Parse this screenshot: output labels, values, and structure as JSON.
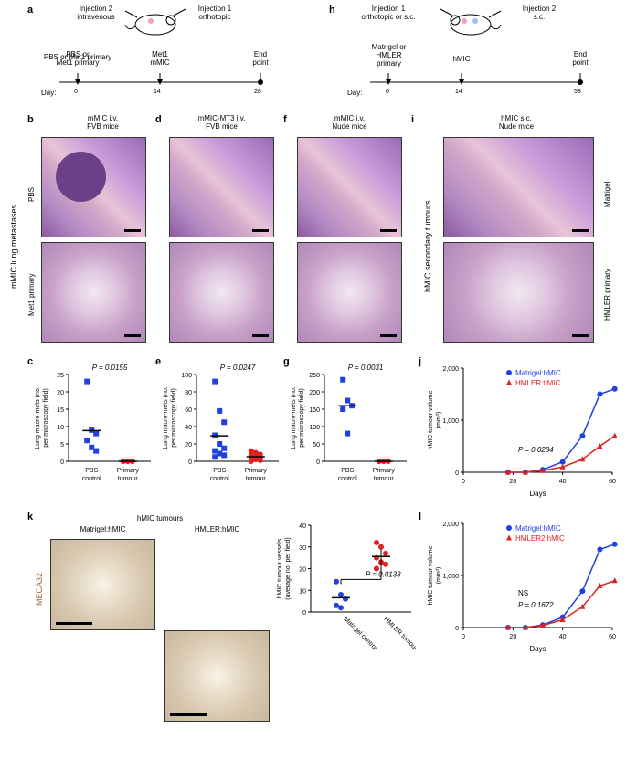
{
  "panels": {
    "a": {
      "label": "a",
      "inj1": "Injection 1\northotopic",
      "inj2": "Injection 2\nintravenous",
      "tl": {
        "l1": "PBS or\nMet1 primary",
        "l2": "Met1\nmMIC",
        "l3": "End\npoint",
        "day": "Day:",
        "d": [
          "0",
          "14",
          "28"
        ]
      }
    },
    "h": {
      "label": "h",
      "inj1": "Injection 1\northotopic or s.c.",
      "inj2": "Injection 2\ns.c.",
      "tl": {
        "l1": "Matrigel or\nHMLER\nprimary",
        "l2": "hMIC",
        "l3": "End\npoint",
        "day": "Day:",
        "d": [
          "0",
          "14",
          "58"
        ]
      }
    },
    "b": {
      "label": "b",
      "title": "mMIC i.v.\nFVB mice",
      "row1": "PBS",
      "row2": "Met1 primary"
    },
    "d": {
      "label": "d",
      "title": "mMIC-MT3 i.v.\nFVB mice"
    },
    "f": {
      "label": "f",
      "title": "mMIC i.v.\nNude mice"
    },
    "i": {
      "label": "i",
      "title": "hMIC s.c.\nNude mice",
      "row1": "Matrigel",
      "row2": "HMLER primary"
    },
    "c": {
      "label": "c",
      "p": "P = 0.0155",
      "ylabel": "Lung macro-mets (no.\nper microscopy field)",
      "ymax": 25,
      "yticks": [
        0,
        5,
        10,
        15,
        20,
        25
      ],
      "xl": [
        "PBS\ncontrol",
        "Primary\ntumour"
      ],
      "pbs": [
        23,
        9,
        8,
        6,
        4,
        3
      ],
      "tum": [
        0,
        0,
        0,
        0,
        0,
        0
      ]
    },
    "e": {
      "label": "e",
      "p": "P = 0.0247",
      "ylabel": "Lung macro-mets (no.\nper microscopy field)",
      "ymax": 100,
      "yticks": [
        0,
        20,
        40,
        60,
        80,
        100
      ],
      "xl": [
        "PBS\ncontrol",
        "Primary\ntumour"
      ],
      "pbs": [
        92,
        58,
        45,
        30,
        20,
        15,
        12,
        9,
        7,
        5
      ],
      "tum": [
        12,
        10,
        8,
        7,
        5,
        4,
        3,
        2,
        1,
        0
      ]
    },
    "g": {
      "label": "g",
      "p": "P = 0.0031",
      "ylabel": "Lung macro-mets (no.\nper microscopy field)",
      "ymax": 250,
      "yticks": [
        0,
        50,
        100,
        150,
        200,
        250
      ],
      "xl": [
        "PBS\ncontrol",
        "Primary\ntumour"
      ],
      "pbs": [
        235,
        175,
        160,
        150,
        80
      ],
      "tum": [
        0,
        0,
        0,
        0,
        0
      ]
    },
    "j": {
      "label": "j",
      "p": "P = 0.0284",
      "ylabel": "hMIC tumour volume\n(mm³)",
      "xlabel": "Days",
      "ymax": 2000,
      "yticks": [
        0,
        1000,
        2000
      ],
      "xmax": 60,
      "xticks": [
        0,
        20,
        40,
        60
      ],
      "legend": [
        "Matrigel:hMIC",
        "HMLER:hMIC"
      ],
      "s1": {
        "x": [
          18,
          25,
          32,
          40,
          48,
          55,
          61
        ],
        "y": [
          0,
          0,
          50,
          200,
          700,
          1500,
          1600
        ],
        "c": "#2040e0"
      },
      "s2": {
        "x": [
          18,
          25,
          32,
          40,
          48,
          55,
          61
        ],
        "y": [
          0,
          0,
          30,
          100,
          250,
          500,
          700
        ],
        "c": "#e02020"
      }
    },
    "l": {
      "label": "l",
      "p": "P = 0.1672",
      "ns": "NS",
      "ylabel": "hMIC tumour volume\n(mm³)",
      "xlabel": "Days",
      "ymax": 2000,
      "yticks": [
        0,
        1000,
        2000
      ],
      "xmax": 60,
      "xticks": [
        0,
        20,
        40,
        60
      ],
      "legend": [
        "Matrigel:hMIC",
        "HMLER2:hMIC"
      ],
      "s1": {
        "x": [
          18,
          25,
          32,
          40,
          48,
          55,
          61
        ],
        "y": [
          0,
          0,
          50,
          200,
          700,
          1500,
          1600
        ],
        "c": "#2040e0"
      },
      "s2": {
        "x": [
          18,
          25,
          32,
          40,
          48,
          55,
          61
        ],
        "y": [
          0,
          0,
          40,
          150,
          400,
          800,
          900
        ],
        "c": "#e02020"
      }
    },
    "k": {
      "label": "k",
      "header": "hMIC tumours",
      "t1": "Matrigel:hMIC",
      "t2": "HMLER:hMIC",
      "stain": "MECA32",
      "p": "P = 0.0133",
      "ylabel": "hMIC tumour vessels\n(average no. per field)",
      "ymax": 40,
      "yticks": [
        0,
        10,
        20,
        30,
        40
      ],
      "xl": [
        "Matrigel control",
        "HMLER tumour"
      ],
      "ctrl": [
        14,
        8,
        6,
        3,
        2
      ],
      "tum": [
        32,
        30,
        27,
        25,
        23,
        22,
        20
      ]
    },
    "side_mets": "mMIC lung metastases",
    "side_hmic": "hMIC secondary tumours"
  },
  "colors": {
    "blue": "#2040e0",
    "red": "#e02020",
    "brown": "#a06030"
  }
}
